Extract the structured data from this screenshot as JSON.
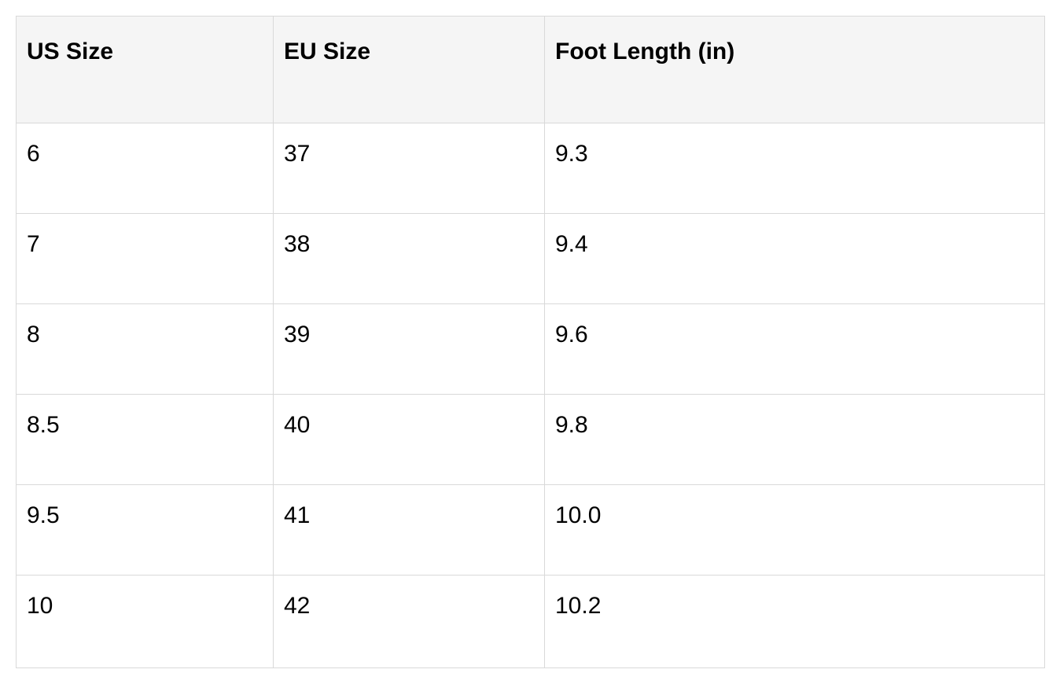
{
  "colors": {
    "page_bg": "#ffffff",
    "header_bg": "#f5f5f5",
    "border": "#d9d9d9",
    "text": "#000000"
  },
  "table": {
    "columns": [
      {
        "label": "US Size"
      },
      {
        "label": "EU Size"
      },
      {
        "label": "Foot Length (in)"
      }
    ],
    "rows": [
      [
        "6",
        "37",
        "9.3"
      ],
      [
        "7",
        "38",
        "9.4"
      ],
      [
        "8",
        "39",
        "9.6"
      ],
      [
        "8.5",
        "40",
        "9.8"
      ],
      [
        "9.5",
        "41",
        "10.0"
      ],
      [
        "10",
        "42",
        "10.2"
      ]
    ]
  }
}
